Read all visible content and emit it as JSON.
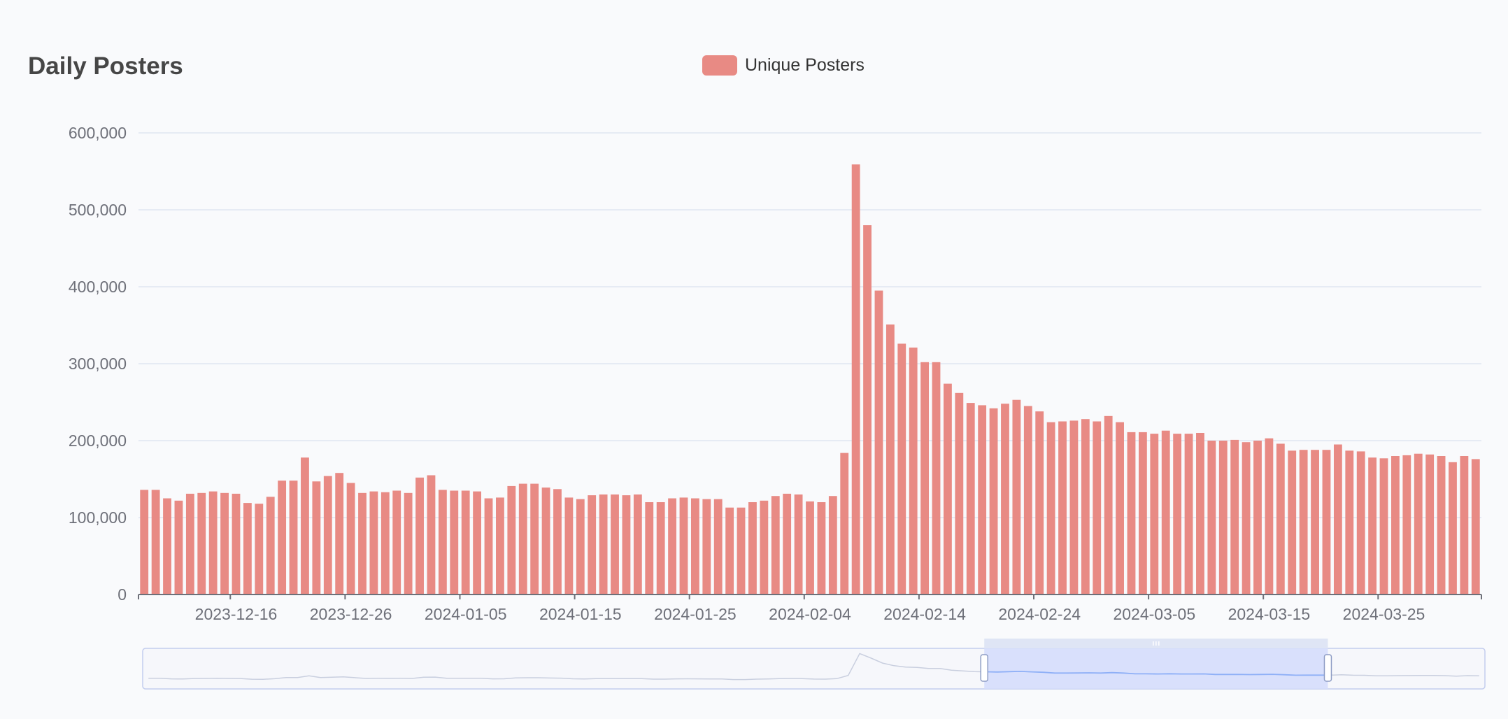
{
  "colors": {
    "bar": "#e88a84",
    "grid": "#e0e6f1",
    "axis": "#6e7079",
    "zoom_fill": "#d3dcfb",
    "zoom_border": "#c3cdee",
    "zoom_line": "#8fb0f7"
  },
  "chart_data": {
    "type": "bar",
    "title": "Daily Posters",
    "legend": {
      "position": "top-center",
      "entries": [
        "Unique Posters"
      ]
    },
    "series": [
      {
        "name": "Unique Posters",
        "values": [
          136000,
          136000,
          125000,
          122000,
          131000,
          132000,
          134000,
          132000,
          131000,
          119000,
          118000,
          127000,
          148000,
          148000,
          178000,
          147000,
          154000,
          158000,
          145000,
          132000,
          134000,
          133000,
          135000,
          132000,
          152000,
          155000,
          136000,
          135000,
          135000,
          134000,
          125000,
          126000,
          141000,
          144000,
          144000,
          139000,
          137000,
          126000,
          124000,
          129000,
          130000,
          130000,
          129000,
          130000,
          120000,
          120000,
          125000,
          126000,
          125000,
          124000,
          124000,
          113000,
          113000,
          120000,
          122000,
          128000,
          131000,
          130000,
          121000,
          120000,
          128000,
          184000,
          559000,
          480000,
          395000,
          351000,
          326000,
          321000,
          302000,
          302000,
          274000,
          262000,
          249000,
          246000,
          242000,
          248000,
          253000,
          245000,
          238000,
          224000,
          225000,
          226000,
          228000,
          225000,
          232000,
          224000,
          211000,
          211000,
          209000,
          213000,
          209000,
          209000,
          210000,
          200000,
          200000,
          201000,
          198000,
          200000,
          203000,
          196000,
          187000,
          188000,
          188000,
          188000,
          195000,
          187000,
          186000,
          178000,
          177000,
          180000,
          181000,
          183000,
          182000,
          180000,
          172000,
          180000,
          176000
        ]
      }
    ],
    "x_tick_labels": [
      "2023-12-16",
      "2023-12-26",
      "2024-01-05",
      "2024-01-15",
      "2024-01-25",
      "2024-02-04",
      "2024-02-14",
      "2024-02-24",
      "2024-03-05",
      "2024-03-15",
      "2024-03-25"
    ],
    "y_tick_labels": [
      "0",
      "100,000",
      "200,000",
      "300,000",
      "400,000",
      "500,000",
      "600,000"
    ],
    "ylim": [
      0,
      600000
    ],
    "grid": true,
    "zoom_window": {
      "start": 0.627,
      "end": 0.883
    }
  }
}
